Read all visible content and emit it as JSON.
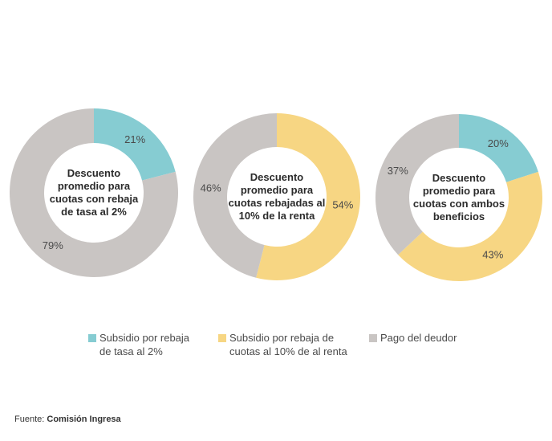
{
  "chart_data": [
    {
      "type": "pie",
      "title": "Descuento promedio para cuotas con rebaja de tasa al 2%",
      "title_lines": [
        "Descuento",
        "promedio para",
        "cuotas con rebaja",
        "de tasa al 2%"
      ],
      "slices": [
        {
          "name": "Subsidio por rebaja de tasa al 2%",
          "value": 21,
          "label": "21%",
          "color": "#86CCD2"
        },
        {
          "name": "Pago del deudor",
          "value": 79,
          "label": "79%",
          "color": "#C9C5C3"
        }
      ]
    },
    {
      "type": "pie",
      "title": "Descuento promedio para cuotas rebajadas al 10% de la renta",
      "title_lines": [
        "Descuento",
        "promedio para",
        "cuotas rebajadas al",
        "10% de la renta"
      ],
      "slices": [
        {
          "name": "Subsidio por rebaja de cuotas al 10% de al renta",
          "value": 54,
          "label": "54%",
          "color": "#F7D683"
        },
        {
          "name": "Pago del deudor",
          "value": 46,
          "label": "46%",
          "color": "#C9C5C3"
        }
      ]
    },
    {
      "type": "pie",
      "title": "Descuento promedio para cuotas con ambos beneficios",
      "title_lines": [
        "Descuento",
        "promedio para",
        "cuotas con ambos",
        "beneficios"
      ],
      "slices": [
        {
          "name": "Subsidio por rebaja de tasa al 2%",
          "value": 20,
          "label": "20%",
          "color": "#86CCD2"
        },
        {
          "name": "Subsidio por rebaja de cuotas al 10% de al renta",
          "value": 43,
          "label": "43%",
          "color": "#F7D683"
        },
        {
          "name": "Pago del deudor",
          "value": 37,
          "label": "37%",
          "color": "#C9C5C3"
        }
      ]
    }
  ],
  "legend": {
    "items": [
      {
        "line1": "Subsidio por rebaja",
        "line2": "de tasa al 2%",
        "color": "#86CCD2"
      },
      {
        "line1": "Subsidio por rebaja de",
        "line2": "cuotas al 10% de al renta",
        "color": "#F7D683"
      },
      {
        "line1": "Pago del deudor",
        "line2": "",
        "color": "#C9C5C3"
      }
    ]
  },
  "source": {
    "prefix": "Fuente:",
    "name": "Comisión Ingresa"
  }
}
